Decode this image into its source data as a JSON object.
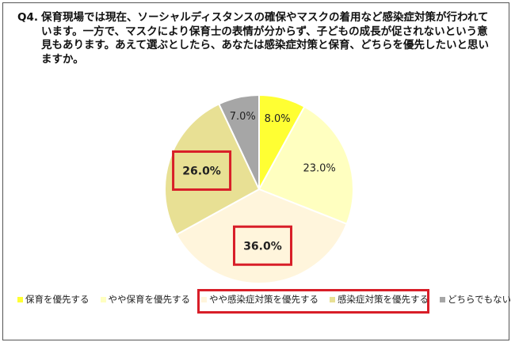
{
  "question": {
    "number": "Q4.",
    "text": "保育現場では現在、ソーシャルディスタンスの確保やマスクの着用など感染症対策が行われています。一方で、マスクにより保育士の表情が分からず、子どもの成長が促されないという意見もあります。あえて選ぶとしたら、あなたは感染症対策と保育、どちらを優先したいと思いますか。"
  },
  "chart_data": {
    "type": "pie",
    "title": "",
    "start_angle_deg": 0,
    "direction": "clockwise",
    "unit": "%",
    "slices": [
      {
        "name": "保育を優先する",
        "value": 8.0,
        "label": "8.0%",
        "color": "#ffff33",
        "highlight": false
      },
      {
        "name": "やや保育を優先する",
        "value": 23.0,
        "label": "23.0%",
        "color": "#ffffc0",
        "highlight": false
      },
      {
        "name": "やや感染症対策を優先する",
        "value": 36.0,
        "label": "36.0%",
        "color": "#fff5dc",
        "highlight": true
      },
      {
        "name": "感染症対策を優先する",
        "value": 26.0,
        "label": "26.0%",
        "color": "#e8e094",
        "highlight": true
      },
      {
        "name": "どちらでもない",
        "value": 7.0,
        "label": "7.0%",
        "color": "#a6a6a6",
        "highlight": false
      }
    ],
    "legend": {
      "placement": "bottom",
      "highlighted_entries": [
        "やや感染症対策を優先する",
        "感染症対策を優先する"
      ]
    }
  }
}
